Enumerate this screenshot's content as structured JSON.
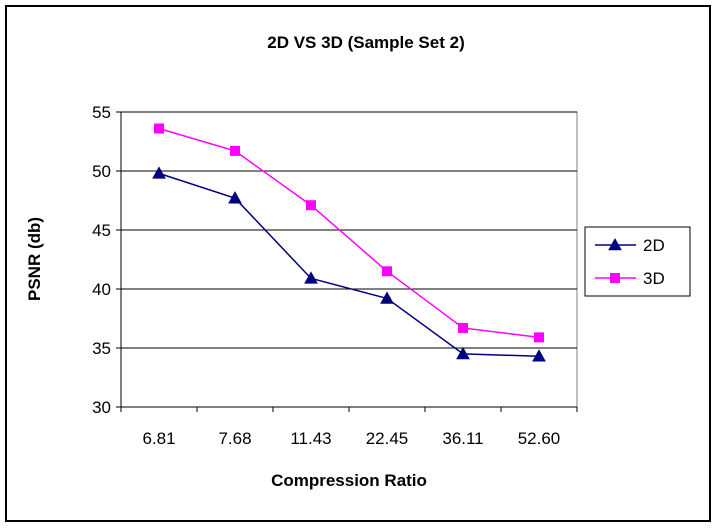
{
  "chart_data": {
    "type": "line",
    "title": "2D VS 3D (Sample Set 2)",
    "xlabel": "Compression Ratio",
    "ylabel": "PSNR (db)",
    "categories": [
      "6.81",
      "7.68",
      "11.43",
      "22.45",
      "36.11",
      "52.60"
    ],
    "ylim": [
      30,
      55
    ],
    "yticks": [
      "30",
      "35",
      "40",
      "45",
      "50",
      "55"
    ],
    "grid": true,
    "legend_position": "right",
    "series": [
      {
        "name": "2D",
        "color": "#000080",
        "marker": "triangle",
        "values": [
          49.8,
          47.7,
          40.9,
          39.2,
          34.5,
          34.3
        ]
      },
      {
        "name": "3D",
        "color": "#FF00FF",
        "marker": "square",
        "values": [
          53.6,
          51.7,
          47.1,
          41.5,
          36.7,
          35.9
        ]
      }
    ]
  }
}
